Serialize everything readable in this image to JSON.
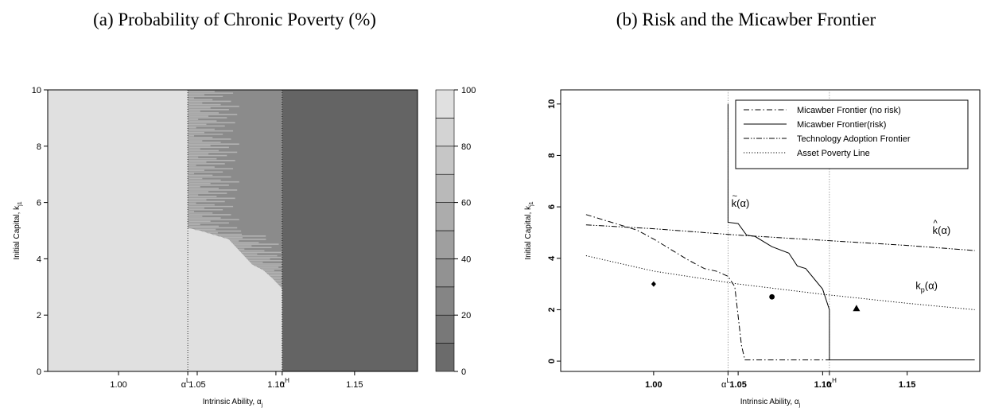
{
  "panels": {
    "a": {
      "title": "(a) Probability of Chronic Poverty (%)"
    },
    "b": {
      "title": "(b) Risk and the Micawber Frontier"
    }
  },
  "chart_data": [
    {
      "type": "heatmap",
      "title": "(a) Probability of Chronic Poverty (%)",
      "xlabel": "Intrinsic Ability, α_j",
      "ylabel": "Initial Capital, k_j1",
      "xlim": [
        0.955,
        1.19
      ],
      "ylim": [
        0,
        10
      ],
      "x_ticks": [
        {
          "value": 1.0,
          "label": "1.00"
        },
        {
          "value": 1.044,
          "label": "α",
          "sup": "L"
        },
        {
          "value": 1.05,
          "label": "1.05"
        },
        {
          "value": 1.1,
          "label": "1.10"
        },
        {
          "value": 1.104,
          "label": "α",
          "sup": "H"
        },
        {
          "value": 1.15,
          "label": "1.15"
        }
      ],
      "y_ticks": [
        0,
        2,
        4,
        6,
        8,
        10
      ],
      "vlines": [
        1.044,
        1.104
      ],
      "colorbar": {
        "min": 0,
        "max": 100,
        "ticks": [
          0,
          20,
          40,
          60,
          80,
          100
        ],
        "bands": 10
      },
      "regions": [
        {
          "name": "low ability, any capital",
          "probability_pct": 95
        },
        {
          "name": "between α^L and α^H, low capital",
          "probability_pct": 95
        },
        {
          "name": "between α^L and α^H, high capital",
          "probability_pct": 30
        },
        {
          "name": "above α^H",
          "probability_pct": 0
        }
      ],
      "boundary": [
        [
          1.044,
          10
        ],
        [
          1.044,
          5.1
        ],
        [
          1.052,
          5.0
        ],
        [
          1.07,
          4.7
        ],
        [
          1.085,
          3.8
        ],
        [
          1.092,
          3.6
        ],
        [
          1.098,
          3.3
        ],
        [
          1.104,
          2.95
        ],
        [
          1.104,
          0
        ]
      ]
    },
    {
      "type": "line",
      "title": "(b) Risk and the Micawber Frontier",
      "xlabel": "Intrinsic Ability, α_j",
      "ylabel": "Initial Capital, k_j1",
      "xlim": [
        0.955,
        1.19
      ],
      "ylim": [
        0,
        10
      ],
      "x_ticks": [
        {
          "value": 1.0,
          "label": "1.00"
        },
        {
          "value": 1.044,
          "label": "α",
          "sup": "L"
        },
        {
          "value": 1.05,
          "label": "1.05"
        },
        {
          "value": 1.1,
          "label": "1.10"
        },
        {
          "value": 1.104,
          "label": "α",
          "sup": "H"
        },
        {
          "value": 1.15,
          "label": "1.15"
        }
      ],
      "y_ticks": [
        0,
        2,
        4,
        6,
        8,
        10
      ],
      "vlines": [
        1.044,
        1.104
      ],
      "legend_position": "top-right",
      "series": [
        {
          "name": "Micawber Frontier (no risk)",
          "style": "dashdot",
          "x": [
            0.96,
            0.99,
            1.0,
            1.01,
            1.02,
            1.03,
            1.037,
            1.044,
            1.048,
            1.052,
            1.054,
            1.19
          ],
          "y": [
            5.7,
            5.1,
            4.75,
            4.35,
            3.95,
            3.6,
            3.5,
            3.3,
            2.9,
            0.6,
            0.05,
            0.05
          ]
        },
        {
          "name": "Micawber Frontier(risk)",
          "style": "solid",
          "x": [
            1.044,
            1.044,
            1.05,
            1.055,
            1.06,
            1.07,
            1.08,
            1.085,
            1.09,
            1.1,
            1.104,
            1.104,
            1.19
          ],
          "y": [
            10.0,
            5.4,
            5.35,
            4.9,
            4.85,
            4.45,
            4.2,
            3.7,
            3.6,
            2.8,
            2.0,
            0.05,
            0.05
          ]
        },
        {
          "name": "Technology Adoption Frontier",
          "style": "dashdotdot",
          "x": [
            0.96,
            1.0,
            1.05,
            1.1,
            1.15,
            1.19
          ],
          "y": [
            5.3,
            5.15,
            4.9,
            4.7,
            4.5,
            4.3
          ]
        },
        {
          "name": "Asset Poverty Line",
          "style": "dotted",
          "x": [
            0.96,
            1.0,
            1.05,
            1.1,
            1.15,
            1.19
          ],
          "y": [
            4.1,
            3.5,
            3.0,
            2.6,
            2.25,
            2.0
          ]
        }
      ],
      "markers": [
        {
          "shape": "diamond",
          "x": 1.0,
          "y": 3.0
        },
        {
          "shape": "circle",
          "x": 1.07,
          "y": 2.5
        },
        {
          "shape": "triangle",
          "x": 1.12,
          "y": 2.05
        }
      ],
      "annotations": [
        {
          "text": "k",
          "accent": "~",
          "sub": "",
          "tail": "(α)",
          "x": 1.046,
          "y": 6.0
        },
        {
          "text": "k",
          "accent": "^",
          "sub": "",
          "tail": "(α)",
          "x": 1.165,
          "y": 4.95
        },
        {
          "text": "k",
          "accent": "",
          "sub": "p",
          "tail": "(α)",
          "x": 1.155,
          "y": 2.8
        }
      ]
    }
  ]
}
